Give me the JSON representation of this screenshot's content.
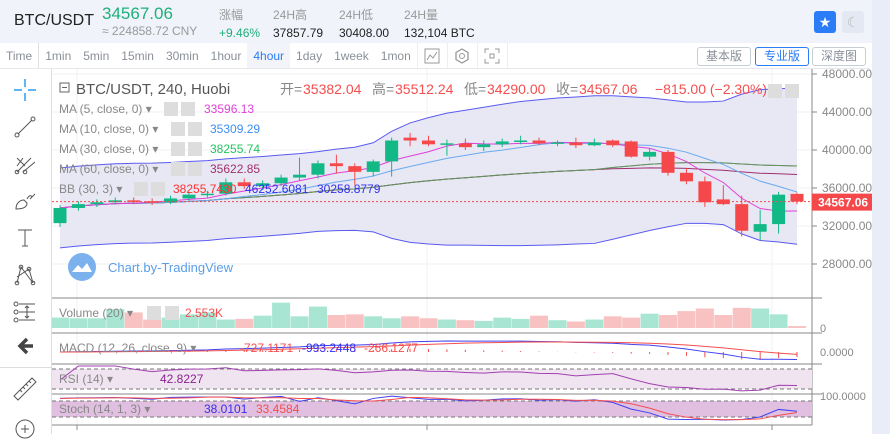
{
  "header": {
    "pair": "BTC/USDT",
    "last_price": "34567.06",
    "cny": "≈ 224858.72 CNY",
    "stats": [
      {
        "label": "涨幅",
        "value": "+9.46%"
      },
      {
        "label": "24H高",
        "value": "37857.79"
      },
      {
        "label": "24H低",
        "value": "30408.00"
      },
      {
        "label": "24H量",
        "value": "132,104 BTC"
      }
    ],
    "star_icon": "star-icon",
    "theme_icon": "moon-icon"
  },
  "toolbar": {
    "intervals": [
      "Time",
      "1min",
      "5min",
      "15min",
      "30min",
      "1hour",
      "4hour",
      "1day",
      "1week",
      "1mon"
    ],
    "active": "4hour",
    "icons": [
      "indicator-icon",
      "settings-hexagon-icon",
      "screenshot-icon"
    ],
    "views": [
      "基本版",
      "专业版",
      "深度图"
    ],
    "active_view": "专业版"
  },
  "tools": [
    "crosshair-icon",
    "trend-line-icon",
    "pitchfork-icon",
    "brush-icon",
    "text-icon",
    "pattern-icon",
    "measure-icon",
    "back-arrow-icon",
    "ruler-icon",
    "zoom-in-icon"
  ],
  "legend": {
    "title": "BTC/USDT, 240, Huobi",
    "ohlc": [
      {
        "k": "开=",
        "v": "35382.04"
      },
      {
        "k": "高=",
        "v": "35512.24"
      },
      {
        "k": "低=",
        "v": "34290.00"
      },
      {
        "k": "收=",
        "v": "34567.06"
      }
    ],
    "change": "−815.00 (−2.30%)",
    "ma": [
      {
        "label": "MA (5, close, 0)",
        "value": "33596.13",
        "color": "#e040d8"
      },
      {
        "label": "MA (10, close, 0)",
        "value": "35309.29",
        "color": "#3d8ef0"
      },
      {
        "label": "MA (30, close, 0)",
        "value": "38255.74",
        "color": "#22c55e"
      },
      {
        "label": "MA (60, close, 0)",
        "value": "35622.85",
        "color": "#a0306e"
      }
    ],
    "bb": {
      "label": "BB (30, 3)",
      "values": [
        "38255.7430",
        "46252.6081",
        "30258.8779"
      ],
      "colors": [
        "#ff3030",
        "#3030f0",
        "#3030f0"
      ]
    },
    "watermark": "Chart.by-TradingView"
  },
  "panes": {
    "volume": {
      "label": "Volume (20)",
      "value": "2.553K",
      "axis": "0"
    },
    "macd": {
      "label": "MACD (12, 26, close, 9)",
      "values": [
        "-727.1171",
        "-993.2448",
        "-266.1277"
      ],
      "axis": "0.0000"
    },
    "rsi": {
      "label": "RSI (14)",
      "value": "42.8227"
    },
    "stoch": {
      "label": "Stoch (14, 1, 3)",
      "values": [
        "38.0101",
        "33.4584"
      ],
      "axis": "100.0000"
    }
  },
  "price_axis": {
    "ticks": [
      48000,
      44000,
      40000,
      36000,
      32000,
      28000
    ],
    "labels": [
      "48000.00",
      "44000.00",
      "40000.00",
      "36000.00",
      "32000.00",
      "28000.00"
    ],
    "last": "34567.06"
  },
  "colors": {
    "up": "#12b886",
    "down": "#f5484a",
    "band": "#5a5af0",
    "band_fill": "#e6e6f3"
  },
  "candles": [
    [
      32300,
      34200,
      31900,
      33900
    ],
    [
      33900,
      34600,
      33600,
      34300
    ],
    [
      34300,
      34800,
      34000,
      34500
    ],
    [
      34500,
      35000,
      34300,
      34700
    ],
    [
      34700,
      35000,
      34300,
      34600
    ],
    [
      34600,
      34900,
      34200,
      34500
    ],
    [
      34500,
      35200,
      34300,
      34900
    ],
    [
      34900,
      35600,
      34700,
      35300
    ],
    [
      35300,
      35700,
      35000,
      35400
    ],
    [
      35400,
      37000,
      35200,
      36600
    ],
    [
      36600,
      37000,
      35900,
      36200
    ],
    [
      36200,
      36800,
      35800,
      36500
    ],
    [
      36500,
      37400,
      36200,
      37100
    ],
    [
      37100,
      39200,
      36800,
      37400
    ],
    [
      37400,
      38900,
      37000,
      38600
    ],
    [
      38600,
      39500,
      37500,
      38300
    ],
    [
      38300,
      38600,
      36300,
      37700
    ],
    [
      37700,
      39000,
      37200,
      38800
    ],
    [
      38800,
      41300,
      37200,
      41000
    ],
    [
      41300,
      41800,
      40400,
      41000
    ],
    [
      41000,
      41500,
      40400,
      40600
    ],
    [
      40600,
      41100,
      39400,
      40700
    ],
    [
      40700,
      41200,
      40000,
      40300
    ],
    [
      40300,
      41000,
      39900,
      40600
    ],
    [
      40600,
      41200,
      40300,
      40900
    ],
    [
      40900,
      41500,
      40600,
      41000
    ],
    [
      41000,
      41300,
      40500,
      40700
    ],
    [
      40700,
      41000,
      40400,
      40800
    ],
    [
      40800,
      41300,
      40200,
      40500
    ],
    [
      40500,
      41200,
      40400,
      40800
    ],
    [
      41000,
      41100,
      40300,
      40500
    ],
    [
      40900,
      41000,
      39200,
      39300
    ],
    [
      39300,
      40200,
      38900,
      39800
    ],
    [
      39800,
      40000,
      37300,
      37600
    ],
    [
      37600,
      38100,
      36400,
      36700
    ],
    [
      36700,
      37200,
      34000,
      34500
    ],
    [
      34800,
      36300,
      34200,
      34300
    ],
    [
      34300,
      35200,
      30900,
      31500
    ],
    [
      31400,
      33700,
      30500,
      32200
    ],
    [
      32200,
      35600,
      31200,
      35300
    ],
    [
      35382.04,
      35512.24,
      34290,
      34567.06
    ]
  ],
  "volumes": [
    1.6,
    1.5,
    1.5,
    2.9,
    2.4,
    1.3,
    1.6,
    2.1,
    2.4,
    1.3,
    1.4,
    1.9,
    3.9,
    1.8,
    3.3,
    2.0,
    2.1,
    1.8,
    1.5,
    1.8,
    1.5,
    1.3,
    1.2,
    1.1,
    1.6,
    1.4,
    1.9,
    1.2,
    1.0,
    1.3,
    1.8,
    1.6,
    2.2,
    2.0,
    2.6,
    3.0,
    2.0,
    3.1,
    3.0,
    2.1,
    0.3
  ]
}
